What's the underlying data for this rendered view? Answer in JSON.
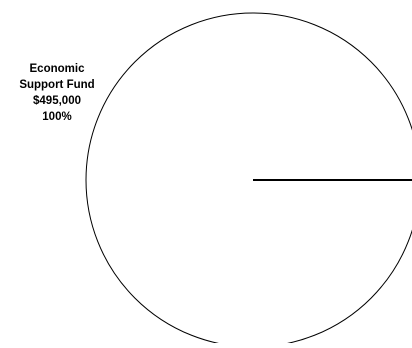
{
  "chart_data": {
    "type": "pie",
    "slices": [
      {
        "name_lines": [
          "Economic",
          "Support Fund"
        ],
        "value": 495000,
        "value_label": "$495,000",
        "percent_label": "100%",
        "fill": "#ffffff"
      }
    ],
    "outline_color": "#000000",
    "legend": "none"
  }
}
